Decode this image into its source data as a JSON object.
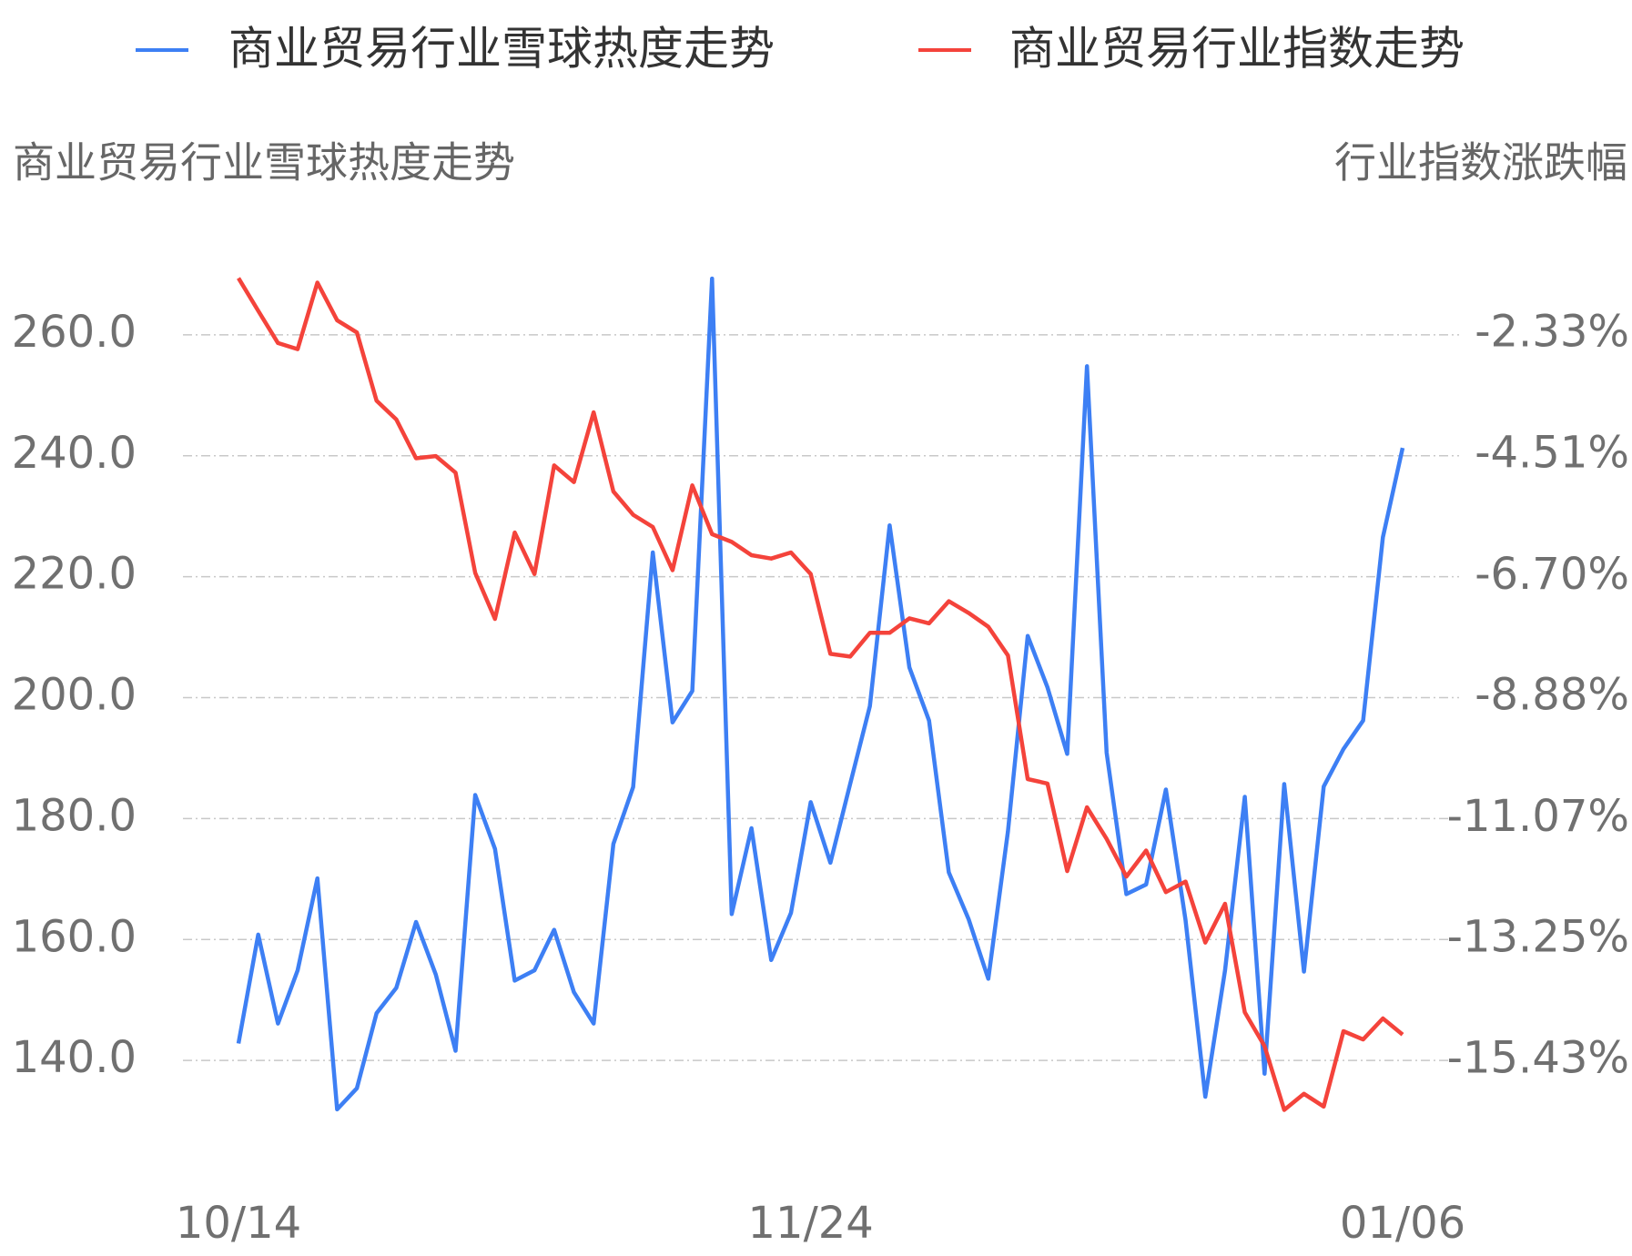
{
  "chart_data": {
    "type": "line",
    "y_label": "商业贸易行业雪球热度走势",
    "y2_label": "行业指数涨跌幅",
    "categories": [
      "10/14",
      null,
      null,
      null,
      null,
      null,
      null,
      null,
      null,
      null,
      null,
      null,
      null,
      null,
      null,
      null,
      null,
      null,
      null,
      null,
      null,
      null,
      null,
      null,
      null,
      null,
      null,
      null,
      null,
      "11/24",
      null,
      null,
      null,
      null,
      null,
      null,
      null,
      null,
      null,
      null,
      null,
      null,
      null,
      null,
      null,
      null,
      null,
      null,
      null,
      null,
      null,
      null,
      null,
      null,
      null,
      null,
      null,
      null,
      null,
      "01/06"
    ],
    "series": [
      {
        "name": "商业贸易行业雪球热度走势",
        "color": "#3d7ff4",
        "values": [
          142.8,
          160.8,
          146.1,
          154.9,
          170.1,
          131.9,
          135.4,
          147.8,
          152.0,
          162.9,
          154.2,
          141.6,
          183.9,
          175.0,
          153.2,
          154.9,
          161.6,
          151.3,
          146.1,
          175.8,
          185.2,
          224.0,
          195.9,
          201.1,
          269.3,
          164.2,
          178.4,
          156.6,
          164.4,
          182.7,
          172.7,
          185.7,
          198.6,
          228.5,
          205.0,
          196.2,
          171.1,
          163.4,
          153.5,
          177.9,
          210.2,
          201.7,
          190.7,
          254.8,
          190.9,
          167.5,
          169.1,
          184.8,
          163.2,
          134.0,
          154.9,
          183.6,
          137.8,
          185.7,
          154.7,
          185.3,
          191.5,
          196.2,
          226.5,
          241.3
        ]
      },
      {
        "name": "商业贸易行业指数走势",
        "color": "#f4433b",
        "axis": "y2",
        "values": [
          -1.31,
          -1.9,
          -2.48,
          -2.59,
          -1.39,
          -2.07,
          -2.29,
          -3.52,
          -3.86,
          -4.56,
          -4.52,
          -4.82,
          -6.63,
          -7.46,
          -5.9,
          -6.65,
          -4.69,
          -4.99,
          -3.73,
          -5.16,
          -5.58,
          -5.8,
          -6.58,
          -5.05,
          -5.93,
          -6.07,
          -6.31,
          -6.37,
          -6.26,
          -6.65,
          -8.09,
          -8.14,
          -7.71,
          -7.71,
          -7.45,
          -7.54,
          -7.14,
          -7.35,
          -7.6,
          -8.12,
          -10.35,
          -10.43,
          -12.01,
          -10.86,
          -11.43,
          -12.11,
          -11.64,
          -12.39,
          -12.2,
          -13.3,
          -12.6,
          -14.56,
          -15.17,
          -16.32,
          -16.03,
          -16.26,
          -14.9,
          -15.05,
          -14.67,
          -14.96
        ]
      }
    ],
    "ylim": [
      120,
      280
    ],
    "yticks": [
      {
        "value": 140,
        "label": "140.0"
      },
      {
        "value": 160,
        "label": "160.0"
      },
      {
        "value": 180,
        "label": "180.0"
      },
      {
        "value": 200,
        "label": "200.0"
      },
      {
        "value": 220,
        "label": "220.0"
      },
      {
        "value": 240,
        "label": "240.0"
      },
      {
        "value": 260,
        "label": "260.0"
      }
    ],
    "y2lim": [
      -17.61,
      -0.15
    ],
    "y2ticks": [
      {
        "value": -15.43,
        "label": "-15.43%"
      },
      {
        "value": -13.25,
        "label": "-13.25%"
      },
      {
        "value": -11.07,
        "label": "-11.07%"
      },
      {
        "value": -8.88,
        "label": "-8.88%"
      },
      {
        "value": -6.7,
        "label": "-6.70%"
      },
      {
        "value": -4.51,
        "label": "-4.51%"
      },
      {
        "value": -2.33,
        "label": "-2.33%"
      }
    ],
    "grid": true
  }
}
